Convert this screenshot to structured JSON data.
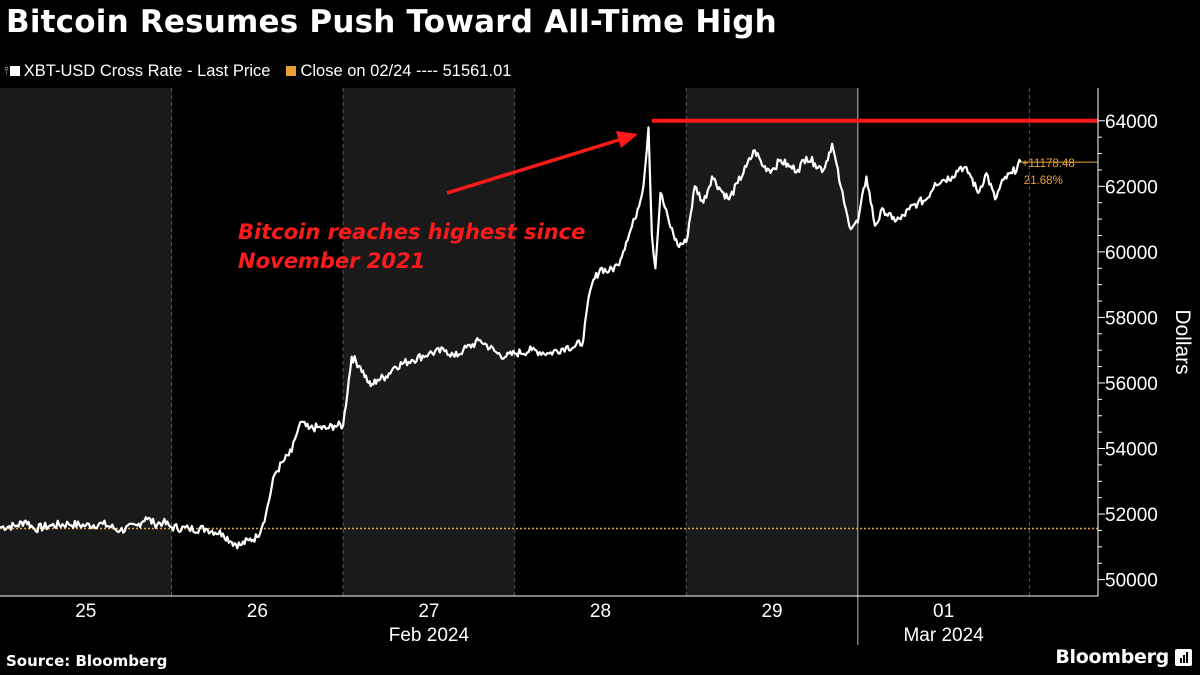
{
  "title": "Bitcoin Resumes Push Toward All-Time High",
  "legend": {
    "series_label": "XBT-USD Cross Rate - Last Price",
    "close_label": "Close on 02/24 ---- 51561.01"
  },
  "colors": {
    "background": "#000000",
    "shaded_band": "#1a1a1a",
    "price_line": "#ffffff",
    "reference_line": "#e8a033",
    "annotation": "#ff1a1a",
    "grid": "#555555"
  },
  "annotation": {
    "line1": "Bitcoin reaches highest since",
    "line2": "November 2021"
  },
  "source": "Source: Bloomberg",
  "brand": "Bloomberg",
  "brand_icon": "bloomberg-logo-icon",
  "chart_data": {
    "type": "line",
    "title": "Bitcoin Resumes Push Toward All-Time High",
    "ylabel": "Dollars",
    "ylim": [
      49500,
      65000
    ],
    "y_ticks": [
      50000,
      52000,
      54000,
      56000,
      58000,
      60000,
      62000,
      64000
    ],
    "y_tick_labels": [
      "50000",
      "52000",
      "54000",
      "56000",
      "58000",
      "60000",
      "62000",
      "64000"
    ],
    "x_range_days": [
      24.5,
      30.9
    ],
    "x_tick_days": [
      25,
      26,
      27,
      28,
      29,
      30
    ],
    "x_tick_labels": [
      "25",
      "26",
      "27",
      "28",
      "29",
      "01"
    ],
    "month_labels": [
      "Feb 2024",
      "Mar 2024"
    ],
    "month_label_days": [
      27,
      30
    ],
    "shaded_day_ranges": [
      [
        24.5,
        25.5
      ],
      [
        26.5,
        27.5
      ],
      [
        28.5,
        29.5
      ]
    ],
    "month_divider_day": 29.5,
    "grid": "dashed vertical at day boundaries",
    "reference_line": {
      "label": "Close on 02/24",
      "value": 51561.01
    },
    "high_line": {
      "value": 64000
    },
    "last_change_label": "+11178.48",
    "last_change_pct_label": "21.68%",
    "series": [
      {
        "name": "XBT-USD Cross Rate - Last Price",
        "x": [
          24.5,
          24.6,
          24.65,
          24.7,
          24.8,
          24.9,
          25.0,
          25.1,
          25.2,
          25.3,
          25.35,
          25.4,
          25.45,
          25.5,
          25.6,
          25.7,
          25.8,
          25.85,
          25.9,
          25.95,
          26.0,
          26.05,
          26.1,
          26.15,
          26.2,
          26.22,
          26.25,
          26.3,
          26.35,
          26.4,
          26.45,
          26.5,
          26.55,
          26.6,
          26.65,
          26.66,
          26.7,
          26.75,
          26.8,
          26.9,
          27.0,
          27.1,
          27.15,
          27.2,
          27.3,
          27.4,
          27.45,
          27.5,
          27.6,
          27.7,
          27.8,
          27.85,
          27.9,
          27.92,
          27.95,
          28.0,
          28.05,
          28.1,
          28.15,
          28.2,
          28.25,
          28.28,
          28.3,
          28.32,
          28.35,
          28.4,
          28.45,
          28.5,
          28.55,
          28.6,
          28.65,
          28.7,
          28.75,
          28.8,
          28.85,
          28.9,
          28.95,
          29.0,
          29.05,
          29.1,
          29.15,
          29.2,
          29.25,
          29.3,
          29.35,
          29.4,
          29.42,
          29.45,
          29.5,
          29.55,
          29.6,
          29.65,
          29.7,
          29.75,
          29.8,
          29.85,
          29.9,
          29.95,
          30.0,
          30.05,
          30.1,
          30.15,
          30.2,
          30.25,
          30.3,
          30.35,
          30.4,
          30.45
        ],
        "values": [
          51600,
          51650,
          51800,
          51550,
          51650,
          51700,
          51650,
          51700,
          51500,
          51650,
          51900,
          51700,
          51750,
          51600,
          51550,
          51550,
          51400,
          51150,
          51050,
          51200,
          51300,
          52000,
          53200,
          53600,
          53900,
          54300,
          54800,
          54600,
          54650,
          54600,
          54700,
          54700,
          56800,
          56500,
          56000,
          55900,
          56100,
          56200,
          56500,
          56700,
          56900,
          57000,
          56800,
          57000,
          57300,
          56900,
          56800,
          56900,
          57000,
          56900,
          57100,
          57100,
          57300,
          58200,
          59000,
          59500,
          59400,
          59600,
          60300,
          61000,
          62000,
          63800,
          60500,
          59500,
          61800,
          60900,
          60200,
          60300,
          62000,
          61500,
          62300,
          61900,
          61600,
          62100,
          62600,
          63100,
          62600,
          62500,
          62800,
          62600,
          62500,
          62900,
          62700,
          62500,
          63300,
          62000,
          61500,
          60800,
          60900,
          62300,
          60800,
          61300,
          61000,
          61000,
          61300,
          61500,
          61600,
          62100,
          62200,
          62300,
          62600,
          62400,
          61800,
          62400,
          61600,
          62200,
          62400,
          62739.49
        ]
      }
    ]
  }
}
